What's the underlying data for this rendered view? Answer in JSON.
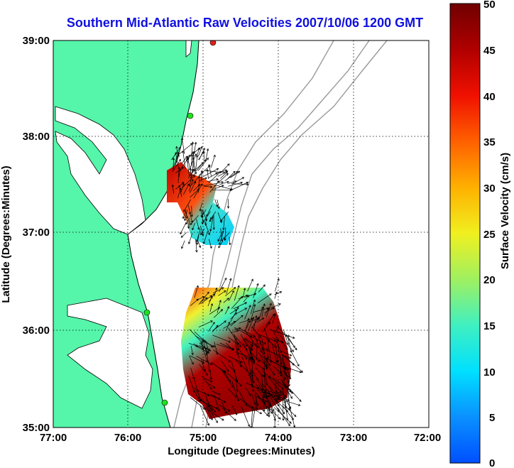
{
  "title": "Southern Mid-Atlantic Raw Velocities 2007/10/06 1200 GMT",
  "x_axis": {
    "label": "Longitude (Degrees:Minutes)",
    "ticks": [
      "77:00",
      "76:00",
      "75:00",
      "74:00",
      "73:00",
      "72:00"
    ]
  },
  "y_axis": {
    "label": "Latitude (Degrees:Minutes)",
    "ticks": [
      "39:00",
      "38:00",
      "37:00",
      "36:00",
      "35:00"
    ]
  },
  "colorbar": {
    "label": "Surface Velocity (cm/s)",
    "ticks": [
      "50",
      "45",
      "40",
      "35",
      "30",
      "25",
      "20",
      "15",
      "10",
      "5",
      "0"
    ],
    "min": 0,
    "max": 50
  },
  "colors": {
    "title": "#1010e0",
    "land": "#55f5aa",
    "coastline": "#000000",
    "bathymetry": "#9a9a9a"
  }
}
